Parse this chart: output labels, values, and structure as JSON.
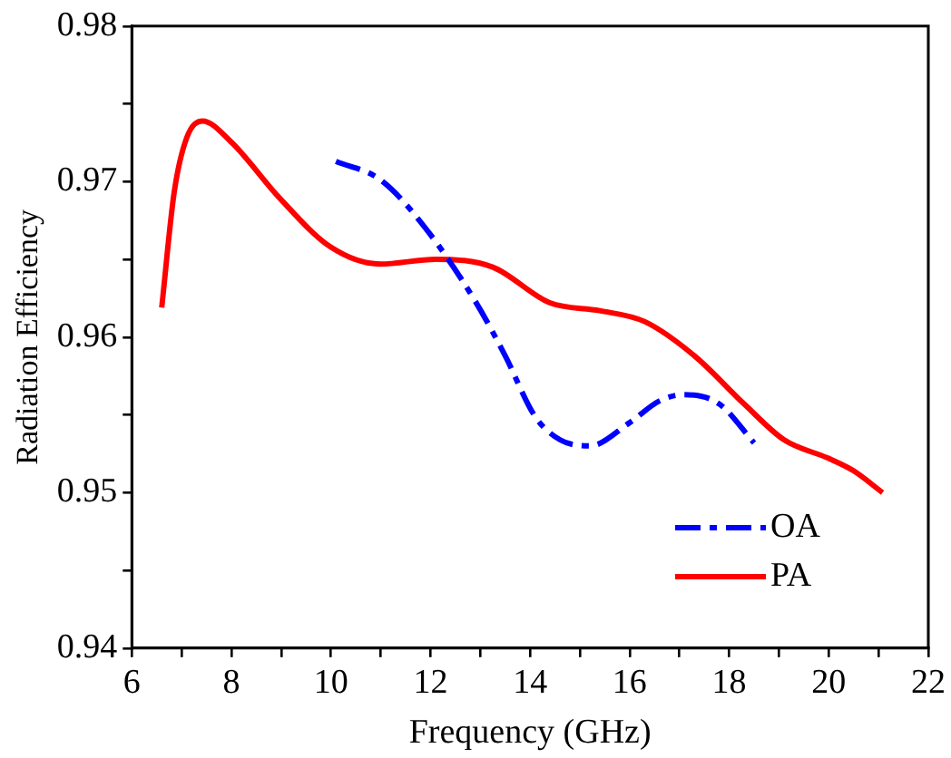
{
  "chart_data": {
    "type": "line",
    "xlabel": "Frequency (GHz)",
    "ylabel": "Radiation Efficiency",
    "xlim": [
      6,
      22
    ],
    "xticks": [
      6,
      {
        "value": 7,
        "label": null
      },
      8,
      {
        "value": 9,
        "label": null
      },
      10,
      {
        "value": 11,
        "label": null
      },
      12,
      {
        "value": 13,
        "label": null
      },
      14,
      {
        "value": 15,
        "label": null
      },
      16,
      {
        "value": 17,
        "label": null
      },
      18,
      {
        "value": 19,
        "label": null
      },
      20,
      {
        "value": 21,
        "label": null
      },
      22
    ],
    "ylim": [
      0.94,
      0.98
    ],
    "yticks": [
      0.94,
      {
        "value": 0.945,
        "label": null
      },
      0.95,
      {
        "value": 0.955,
        "label": null
      },
      0.96,
      {
        "value": 0.965,
        "label": null
      },
      0.97,
      {
        "value": 0.975,
        "label": null
      },
      0.98
    ],
    "grid": false,
    "legend": "bottom right",
    "marker": "none",
    "series": [
      {
        "name": "OA",
        "color": "#0000ff",
        "line_style": "dashed",
        "x": [
          10.1,
          11.0,
          11.9,
          12.9,
          13.5,
          14.1,
          14.6,
          15.2,
          16.0,
          16.6,
          17.1,
          17.8,
          18.5
        ],
        "values": [
          0.9713,
          0.9701,
          0.967,
          0.9623,
          0.9588,
          0.9549,
          0.9534,
          0.953,
          0.9545,
          0.9559,
          0.9563,
          0.9557,
          0.9532
        ]
      },
      {
        "name": "PA",
        "color": "#ff0000",
        "line_style": "solid",
        "x": [
          6.6,
          6.85,
          7.1,
          7.42,
          7.98,
          8.98,
          9.99,
          10.99,
          12.1,
          13.25,
          14.4,
          15.4,
          16.3,
          17.3,
          18.3,
          19.1,
          20.0,
          20.5,
          21.08
        ],
        "values": [
          0.9619,
          0.9693,
          0.9728,
          0.9739,
          0.9726,
          0.9689,
          0.9658,
          0.9647,
          0.965,
          0.9645,
          0.9622,
          0.9617,
          0.961,
          0.9588,
          0.9557,
          0.9534,
          0.9522,
          0.9514,
          0.95
        ]
      }
    ]
  }
}
